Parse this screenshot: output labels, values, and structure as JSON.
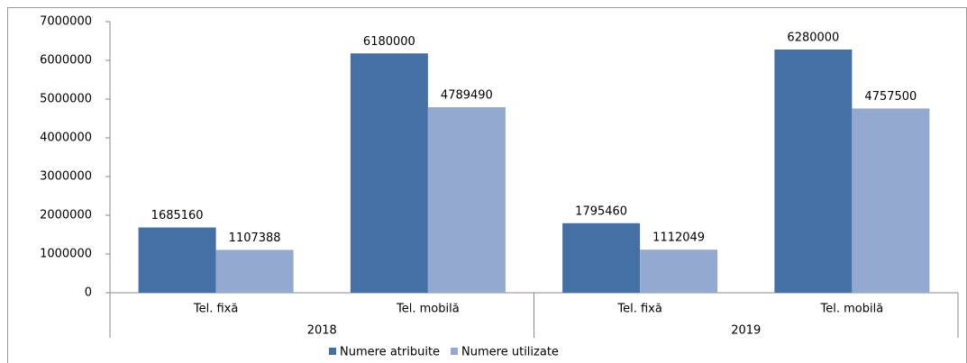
{
  "chart_data": {
    "type": "bar",
    "categories": [
      "Tel. fixă",
      "Tel. mobilă",
      "Tel. fixă",
      "Tel. mobilă"
    ],
    "groups": [
      "2018",
      "2019"
    ],
    "series": [
      {
        "name": "Numere atribuite",
        "color": "#4470a5",
        "values": [
          1685160,
          6180000,
          1795460,
          6280000
        ]
      },
      {
        "name": "Numere utilizate",
        "color": "#93a9cf",
        "values": [
          1107388,
          4789490,
          1112049,
          4757500
        ]
      }
    ],
    "ylim": [
      0,
      7000000
    ],
    "yticks": [
      0,
      1000000,
      2000000,
      3000000,
      4000000,
      5000000,
      6000000,
      7000000
    ],
    "grid": false,
    "legend": "bottom"
  }
}
